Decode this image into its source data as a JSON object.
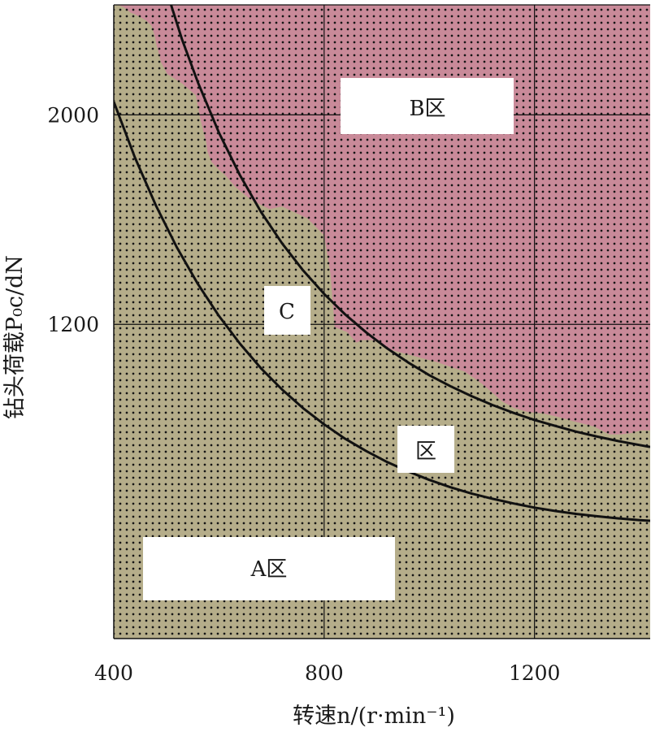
{
  "chart_data": {
    "type": "area",
    "xlabel": "转速n/(r·min⁻¹)",
    "ylabel": "钻头荷载P₀c/dN",
    "xlim": [
      400,
      1420
    ],
    "ylim": [
      0,
      2420
    ],
    "x_ticks": [
      400,
      800,
      1200
    ],
    "y_ticks": [
      1200,
      2000
    ],
    "grid": true,
    "colors": {
      "region_a": "#b5ad8a",
      "region_b": "#c98a99",
      "dots": "#151515",
      "curve": "#111111",
      "grid": "#111111"
    },
    "boundary": {
      "x": [
        400,
        408,
        420,
        432,
        439,
        462,
        472,
        478,
        481,
        490,
        502,
        530,
        556,
        564,
        570,
        576,
        578,
        586,
        600,
        612,
        631,
        655,
        666,
        696,
        720,
        768,
        800,
        812,
        820,
        844,
        861,
        872,
        891,
        904,
        922,
        969,
        1016,
        1044,
        1067,
        1099,
        1125,
        1139,
        1162,
        1188,
        1216,
        1248,
        1274,
        1313,
        1342,
        1365,
        1384,
        1402,
        1420
      ],
      "y": [
        2430,
        2420,
        2410,
        2390,
        2385,
        2360,
        2340,
        2300,
        2270,
        2200,
        2155,
        2120,
        2075,
        1990,
        1940,
        1895,
        1860,
        1820,
        1790,
        1770,
        1725,
        1685,
        1670,
        1640,
        1650,
        1605,
        1540,
        1395,
        1190,
        1170,
        1130,
        1140,
        1140,
        1130,
        1105,
        1080,
        1055,
        1035,
        1020,
        975,
        930,
        905,
        880,
        865,
        860,
        845,
        830,
        810,
        780,
        780,
        785,
        795,
        795
      ]
    },
    "curves": [
      {
        "x": [
          400,
          440,
          480,
          520,
          560,
          600,
          640,
          680,
          720,
          760,
          800,
          840,
          880,
          920,
          960,
          1000,
          1040,
          1080,
          1120,
          1160,
          1200,
          1240,
          1280,
          1320,
          1360,
          1400,
          1420
        ],
        "y": [
          2050,
          1838,
          1654,
          1494,
          1354,
          1232,
          1126,
          1032,
          951,
          880,
          818,
          763,
          716,
          674,
          638,
          606,
          578,
          554,
          534,
          516,
          500,
          487,
          476,
          467,
          459,
          452,
          450
        ]
      },
      {
        "x": [
          509,
          530,
          560,
          600,
          640,
          680,
          720,
          760,
          800,
          840,
          880,
          920,
          960,
          1000,
          1040,
          1080,
          1120,
          1160,
          1200,
          1240,
          1280,
          1320,
          1360,
          1400,
          1420
        ],
        "y": [
          2420,
          2287,
          2124,
          1932,
          1769,
          1629,
          1509,
          1406,
          1316,
          1238,
          1169,
          1108,
          1054,
          1006,
          964,
          926,
          892,
          862,
          835,
          812,
          790,
          771,
          754,
          739,
          732
        ]
      }
    ],
    "region_labels": [
      "B区",
      "C",
      "区",
      "A区"
    ]
  }
}
